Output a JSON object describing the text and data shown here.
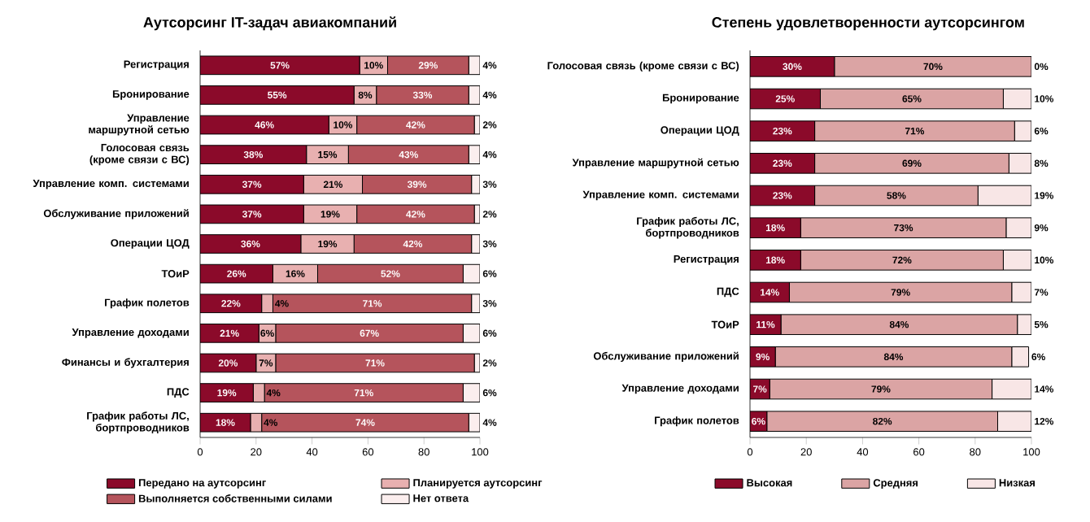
{
  "chart_data": [
    {
      "type": "bar",
      "title": "Аутсорсинг IT-задач авиакомпаний",
      "orientation": "horizontal",
      "stacked": true,
      "legend": "bottom",
      "xlim": [
        0,
        100
      ],
      "xticks": [
        0,
        20,
        40,
        60,
        80,
        100
      ],
      "categories": [
        "Регистрация",
        "Бронирование",
        "Управление маршрутной сетью",
        "Голосовая связь (кроме связи с ВС)",
        "Управление комп. системами",
        "Обслуживание приложений",
        "Операции ЦОД",
        "ТОиР",
        "График полетов",
        "Управление доходами",
        "Финансы и бухгалтерия",
        "ПДС",
        "График работы ЛС, бортпроводников"
      ],
      "series": [
        {
          "name": "Передано на аутсорсинг",
          "color": "#8b0a2a",
          "values": [
            57,
            55,
            46,
            38,
            37,
            37,
            36,
            26,
            22,
            21,
            20,
            19,
            18
          ],
          "value_labels": [
            "57%",
            "55%",
            "46%",
            "38%",
            "37%",
            "37%",
            "36%",
            "26%",
            "22%",
            "21%",
            "20%",
            "19%",
            "18%"
          ]
        },
        {
          "name": "Планируется аутсорсинг",
          "color": "#e8b0b0",
          "values": [
            10,
            8,
            10,
            15,
            21,
            19,
            19,
            16,
            4,
            6,
            7,
            4,
            4
          ],
          "value_labels": [
            "10%",
            "8%",
            "10%",
            "15%",
            "21%",
            "19%",
            "19%",
            "16%",
            "4%",
            "6%",
            "7%",
            "4%",
            "4%"
          ]
        },
        {
          "name": "Выполняется собственными силами",
          "color": "#b5545c",
          "values": [
            29,
            33,
            42,
            43,
            39,
            42,
            42,
            52,
            71,
            67,
            71,
            71,
            74
          ],
          "value_labels": [
            "29%",
            "33%",
            "42%",
            "43%",
            "39%",
            "42%",
            "42%",
            "52%",
            "71%",
            "67%",
            "71%",
            "71%",
            "74%"
          ]
        },
        {
          "name": "Нет ответа",
          "color": "#fbeeee",
          "values": [
            4,
            4,
            2,
            4,
            3,
            2,
            3,
            6,
            3,
            6,
            2,
            6,
            4
          ],
          "value_labels": [
            "4%",
            "4%",
            "2%",
            "4%",
            "3%",
            "2%",
            "3%",
            "6%",
            "3%",
            "6%",
            "2%",
            "6%",
            "4%"
          ]
        }
      ]
    },
    {
      "type": "bar",
      "title": "Степень удовлетворенности аутсорсингом",
      "orientation": "horizontal",
      "stacked": true,
      "legend": "bottom",
      "xlim": [
        0,
        100
      ],
      "xticks": [
        0,
        20,
        40,
        60,
        80,
        100
      ],
      "categories": [
        "Голосовая связь (кроме связи с ВС)",
        "Бронирование",
        "Операции ЦОД",
        "Управление маршрутной сетью",
        "Управление комп. системами",
        "График работы ЛС, бортпроводников",
        "Регистрация",
        "ПДС",
        "ТОиР",
        "Обслуживание приложений",
        "Управление доходами",
        "График полетов"
      ],
      "series": [
        {
          "name": "Высокая",
          "color": "#8b0a2a",
          "values": [
            30,
            25,
            23,
            23,
            23,
            18,
            18,
            14,
            11,
            9,
            7,
            6
          ],
          "value_labels": [
            "30%",
            "25%",
            "23%",
            "23%",
            "23%",
            "18%",
            "18%",
            "14%",
            "11%",
            "9%",
            "7%",
            "6%"
          ]
        },
        {
          "name": "Средняя",
          "color": "#dba4a4",
          "values": [
            70,
            65,
            71,
            69,
            58,
            73,
            72,
            79,
            84,
            84,
            79,
            82
          ],
          "value_labels": [
            "70%",
            "65%",
            "71%",
            "69%",
            "58%",
            "73%",
            "72%",
            "79%",
            "84%",
            "84%",
            "79%",
            "82%"
          ]
        },
        {
          "name": "Низкая",
          "color": "#f8e6e6",
          "values": [
            0,
            10,
            6,
            8,
            19,
            9,
            10,
            7,
            5,
            6,
            14,
            12
          ],
          "value_labels": [
            "0%",
            "10%",
            "6%",
            "8%",
            "19%",
            "9%",
            "10%",
            "7%",
            "5%",
            "6%",
            "14%",
            "12%"
          ]
        }
      ]
    }
  ]
}
